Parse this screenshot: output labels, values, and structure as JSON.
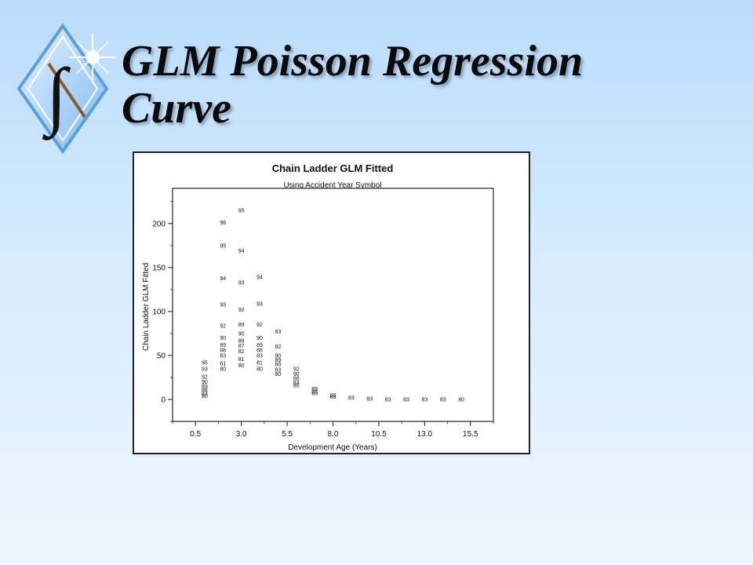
{
  "slide": {
    "title_line1": "GLM Poisson Regression",
    "title_line2": "Curve"
  },
  "logo": {
    "icon": "integral-diamond-logo-icon",
    "glyph": "∫"
  },
  "chart_data": {
    "type": "scatter",
    "title": "Chain Ladder GLM Fitted",
    "subtitle": "Using Accident Year Symbol",
    "xlabel": "Development Age (Years)",
    "ylabel": "Chain Ladder GLM Fitted",
    "xlim": [
      -0.75,
      16.75
    ],
    "ylim": [
      -25,
      240
    ],
    "xticks": [
      "0.5",
      "3.0",
      "5.5",
      "8.0",
      "10.5",
      "13.0",
      "15.5"
    ],
    "xtick_values": [
      0.5,
      3.0,
      5.5,
      8.0,
      10.5,
      13.0,
      15.5
    ],
    "yticks": [
      "0",
      "50",
      "100",
      "150",
      "200"
    ],
    "ytick_values": [
      0,
      50,
      100,
      150,
      200
    ],
    "grid": false,
    "marker": "accident year label",
    "points": [
      {
        "x": 2,
        "y": 201,
        "label": "96"
      },
      {
        "x": 2,
        "y": 175,
        "label": "95"
      },
      {
        "x": 2,
        "y": 138,
        "label": "94"
      },
      {
        "x": 2,
        "y": 108,
        "label": "93"
      },
      {
        "x": 2,
        "y": 84,
        "label": "92"
      },
      {
        "x": 2,
        "y": 70,
        "label": "90"
      },
      {
        "x": 2,
        "y": 62,
        "label": "89"
      },
      {
        "x": 2,
        "y": 56,
        "label": "88"
      },
      {
        "x": 2,
        "y": 50,
        "label": "83"
      },
      {
        "x": 2,
        "y": 41,
        "label": "81"
      },
      {
        "x": 2,
        "y": 35,
        "label": "80"
      },
      {
        "x": 3,
        "y": 215,
        "label": "95"
      },
      {
        "x": 3,
        "y": 169,
        "label": "94"
      },
      {
        "x": 3,
        "y": 133,
        "label": "93"
      },
      {
        "x": 3,
        "y": 102,
        "label": "92"
      },
      {
        "x": 3,
        "y": 85,
        "label": "89"
      },
      {
        "x": 3,
        "y": 75,
        "label": "90"
      },
      {
        "x": 3,
        "y": 67,
        "label": "88"
      },
      {
        "x": 3,
        "y": 61,
        "label": "87"
      },
      {
        "x": 3,
        "y": 55,
        "label": "82"
      },
      {
        "x": 3,
        "y": 46,
        "label": "81"
      },
      {
        "x": 3,
        "y": 39,
        "label": "80"
      },
      {
        "x": 4,
        "y": 139,
        "label": "94"
      },
      {
        "x": 4,
        "y": 109,
        "label": "93"
      },
      {
        "x": 4,
        "y": 85,
        "label": "92"
      },
      {
        "x": 4,
        "y": 70,
        "label": "90"
      },
      {
        "x": 4,
        "y": 62,
        "label": "89"
      },
      {
        "x": 4,
        "y": 56,
        "label": "88"
      },
      {
        "x": 4,
        "y": 50,
        "label": "83"
      },
      {
        "x": 4,
        "y": 42,
        "label": "81"
      },
      {
        "x": 4,
        "y": 35,
        "label": "80"
      },
      {
        "x": 5,
        "y": 77,
        "label": "93"
      },
      {
        "x": 5,
        "y": 60,
        "label": "92"
      },
      {
        "x": 5,
        "y": 50,
        "label": "90"
      },
      {
        "x": 5,
        "y": 45,
        "label": "89"
      },
      {
        "x": 5,
        "y": 40,
        "label": "88"
      },
      {
        "x": 5,
        "y": 34,
        "label": "83"
      },
      {
        "x": 5,
        "y": 29,
        "label": "80"
      },
      {
        "x": 6,
        "y": 35,
        "label": "92"
      },
      {
        "x": 6,
        "y": 29,
        "label": "90"
      },
      {
        "x": 6,
        "y": 24,
        "label": "88"
      },
      {
        "x": 6,
        "y": 19,
        "label": "83"
      },
      {
        "x": 6,
        "y": 16,
        "label": "80"
      },
      {
        "x": 7,
        "y": 12,
        "label": "89"
      },
      {
        "x": 7,
        "y": 9,
        "label": "88"
      },
      {
        "x": 7,
        "y": 7,
        "label": "83"
      },
      {
        "x": 8,
        "y": 5,
        "label": "88"
      },
      {
        "x": 8,
        "y": 3,
        "label": "83"
      },
      {
        "x": 9,
        "y": 2,
        "label": "83"
      },
      {
        "x": 10,
        "y": 1,
        "label": "83"
      },
      {
        "x": 11,
        "y": 0,
        "label": "83"
      },
      {
        "x": 12,
        "y": 0,
        "label": "83"
      },
      {
        "x": 13,
        "y": 0,
        "label": "83"
      },
      {
        "x": 14,
        "y": 0,
        "label": "83"
      },
      {
        "x": 15,
        "y": 0,
        "label": "80"
      },
      {
        "x": 1,
        "y": 42,
        "label": "95"
      },
      {
        "x": 1,
        "y": 35,
        "label": "93"
      },
      {
        "x": 1,
        "y": 26,
        "label": "92"
      },
      {
        "x": 1,
        "y": 20,
        "label": "90"
      },
      {
        "x": 1,
        "y": 15,
        "label": "89"
      },
      {
        "x": 1,
        "y": 11,
        "label": "88"
      },
      {
        "x": 1,
        "y": 7,
        "label": "83"
      },
      {
        "x": 1,
        "y": 4,
        "label": "80"
      }
    ]
  }
}
